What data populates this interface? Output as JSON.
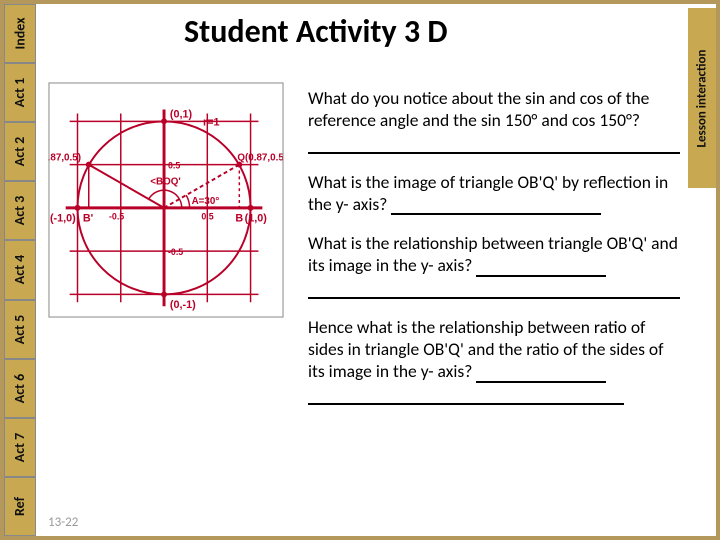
{
  "frame_color": "#b4975a",
  "title": "Student Activity 3 D",
  "title_color": "#1a1a1a",
  "page_number": "13-22",
  "left_tabs": {
    "items": [
      {
        "label": "Index"
      },
      {
        "label": "Act 1"
      },
      {
        "label": "Act 2"
      },
      {
        "label": "Act 3"
      },
      {
        "label": "Act 4"
      },
      {
        "label": "Act 5"
      },
      {
        "label": "Act 6"
      },
      {
        "label": "Act 7"
      },
      {
        "label": "Ref"
      }
    ],
    "bg": "#c8a951",
    "divider": "#999999",
    "text_color": "#111111"
  },
  "right_tab": {
    "label": "Lesson interaction",
    "bg": "#c8a951",
    "text_color": "#111111"
  },
  "questions": {
    "q1": "What do you notice about the sin and cos of the reference angle and the sin 150° and cos 150°?",
    "q2": "What is the image of triangle OB'Q' by reflection in the y- axis? ",
    "q3a": "What is the relationship between triangle OB'Q' and its image in the y- axis? ",
    "q4a": "Hence what is the relationship between ratio of sides in triangle OB'Q' and the ratio of the sides of its image in the y- axis? "
  },
  "diagram": {
    "bg": "#ffffff",
    "grid_color": "#b80028",
    "circle_color": "#b80028",
    "label_color": "#b80028",
    "axis_range": [
      -1,
      1
    ],
    "tick": 0.5,
    "radius_label": "r=1",
    "points": {
      "Q_right": {
        "x": 0.87,
        "y": 0.5,
        "label": "Q(0.87,0.5)"
      },
      "Q_left": {
        "x": -0.87,
        "y": 0.5,
        "label": "(-0.87,0.5)"
      },
      "top": {
        "x": 0,
        "y": 1,
        "label": "(0,1)"
      },
      "bottom": {
        "x": 0,
        "y": -1,
        "label": "(0,-1)"
      },
      "left": {
        "x": -1,
        "y": 0,
        "label": "(-1,0)"
      },
      "right": {
        "x": 1,
        "y": 0,
        "label": "(1,0)"
      }
    },
    "angles": {
      "ref_angle_label": "A=30°",
      "boq_angle_label": "<BOQ'",
      "ref_angle_deg": 30,
      "boq_angle_deg": 150
    },
    "B_labels": {
      "right": "B",
      "left": "B'"
    },
    "line_width": 2
  }
}
